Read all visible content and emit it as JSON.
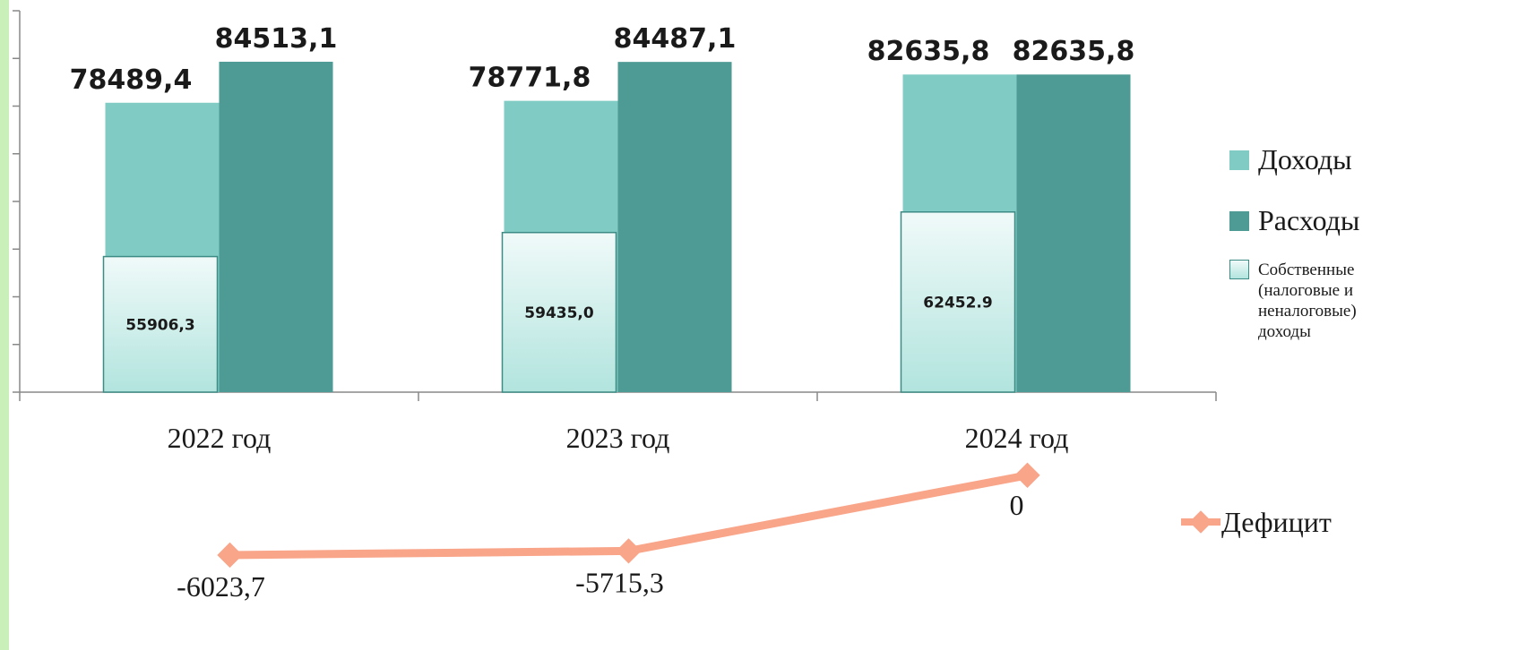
{
  "chart_data": [
    {
      "type": "bar",
      "categories": [
        "2022 год",
        "2023 год",
        "2024 год"
      ],
      "series": [
        {
          "name": "Доходы",
          "color": "#80cbc4",
          "values": [
            78489.4,
            78771.8,
            82635.8
          ],
          "value_labels": [
            "78489,4",
            "78771,8",
            "82635,8"
          ]
        },
        {
          "name": "Расходы",
          "color": "#4e9a94",
          "values": [
            84513.1,
            84487.1,
            82635.8
          ],
          "value_labels": [
            "84513,1",
            "84487,1",
            "82635,8"
          ]
        },
        {
          "name": "Собственные (налоговые и неналоговые) доходы",
          "color": "#b2e4de",
          "values": [
            55906.3,
            59435.0,
            62452.9
          ],
          "value_labels": [
            "55906,3",
            "59435,0",
            "62452.9"
          ]
        }
      ],
      "ylim": [
        36000,
        92000
      ],
      "yticks": [
        36000,
        43000,
        50000,
        57000,
        64000,
        71000,
        78000,
        85000,
        92000
      ]
    },
    {
      "type": "line",
      "categories": [
        "2022 год",
        "2023 год",
        "2024 год"
      ],
      "series": [
        {
          "name": "Дефицит",
          "color": "#f9a58a",
          "values": [
            -6023.7,
            -5715.3,
            0
          ],
          "value_labels": [
            "-6023,7",
            "-5715,3",
            "0"
          ]
        }
      ],
      "ylim": [
        -6500,
        1000
      ]
    }
  ]
}
